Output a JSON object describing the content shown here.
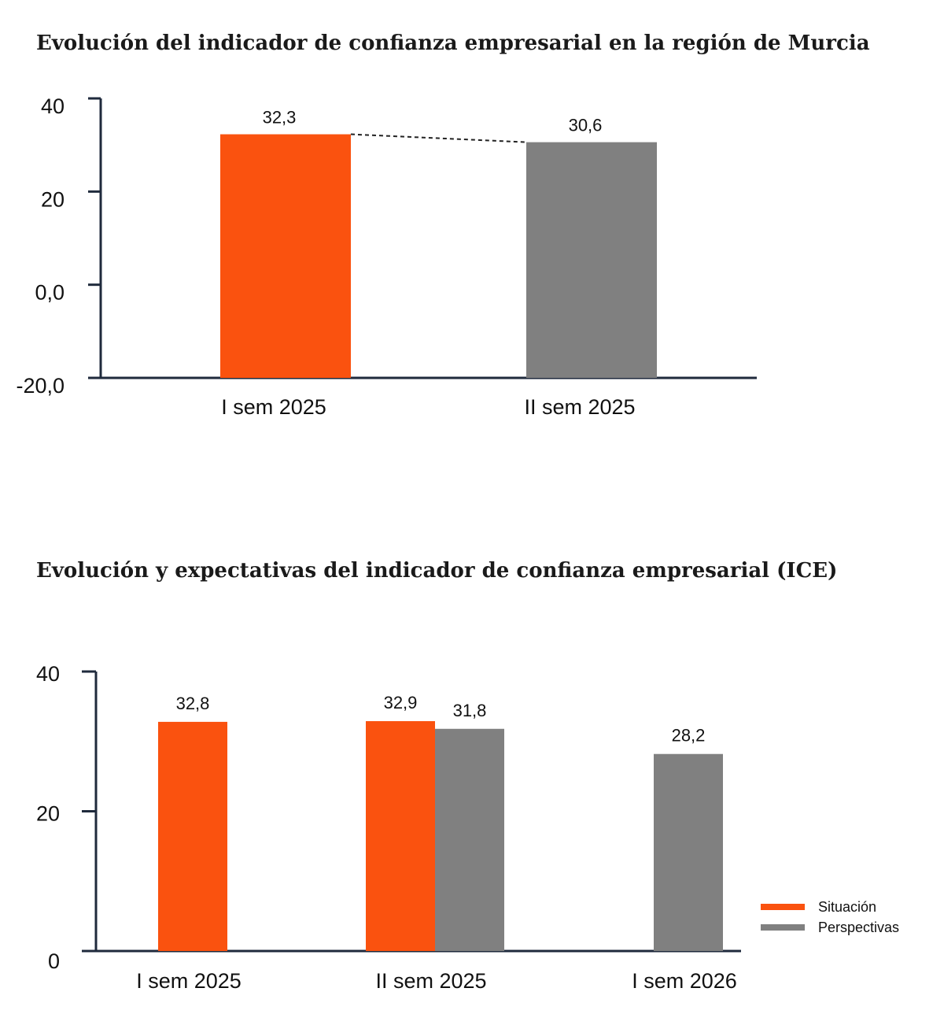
{
  "colors": {
    "situacion": "#FA520F",
    "perspectivas": "#808080",
    "axis": "#1F2A3C"
  },
  "chart_data": [
    {
      "type": "bar",
      "title": "Evolución del indicador de confianza empresarial en la región de Murcia",
      "categories": [
        "I sem 2025",
        "II sem 2025"
      ],
      "values": [
        32.3,
        30.6
      ],
      "value_labels": [
        "32,3",
        "30,6"
      ],
      "bar_colors": [
        "#FA520F",
        "#808080"
      ],
      "yticks": [
        40,
        20,
        0,
        -20
      ],
      "ytick_labels": [
        "40",
        "20",
        "0,0",
        "-20,0"
      ],
      "ylim": [
        -20,
        40
      ],
      "connector": "dashed line between bar tops",
      "grid": false,
      "legend": null
    },
    {
      "type": "bar",
      "title": "Evolución y expectativas del indicador de confianza empresarial (ICE)",
      "categories": [
        "I sem 2025",
        "II sem 2025",
        "I sem 2026"
      ],
      "series": [
        {
          "name": "Situación",
          "values": [
            32.8,
            32.9,
            null
          ],
          "value_labels": [
            "32,8",
            "32,9",
            ""
          ],
          "color": "#FA520F"
        },
        {
          "name": "Perspectivas",
          "values": [
            null,
            31.8,
            28.2
          ],
          "value_labels": [
            "",
            "31,8",
            "28,2"
          ],
          "color": "#808080"
        }
      ],
      "yticks": [
        40,
        20,
        0
      ],
      "ytick_labels": [
        "40",
        "20",
        "0"
      ],
      "ylim": [
        0,
        40
      ],
      "grid": false,
      "legend": "bottom-right"
    }
  ]
}
